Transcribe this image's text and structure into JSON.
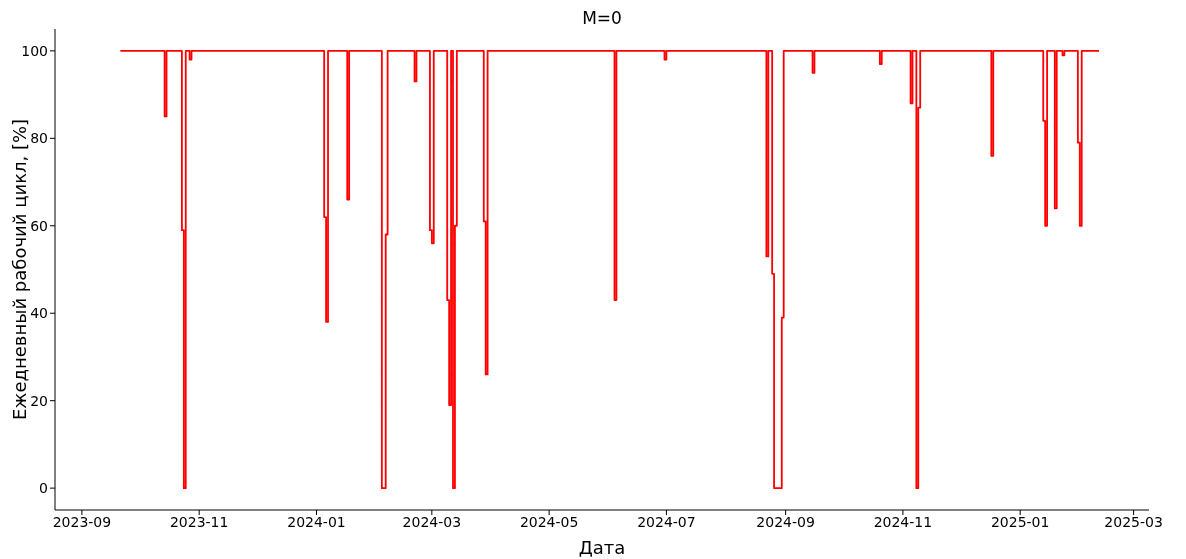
{
  "chart_data": {
    "type": "step",
    "title": "M=0",
    "xlabel": "Дата",
    "ylabel": "Ежедневный рабочий цикл, [%]",
    "color": "#ff0000",
    "x": [
      "2023-09-21",
      "2023-10-14",
      "2023-10-15",
      "2023-10-23",
      "2023-10-24",
      "2023-10-25",
      "2023-10-27",
      "2023-10-28",
      "2024-01-05",
      "2024-01-06",
      "2024-01-07",
      "2024-01-17",
      "2024-01-18",
      "2024-02-04",
      "2024-02-06",
      "2024-02-07",
      "2024-02-21",
      "2024-02-22",
      "2024-02-29",
      "2024-03-01",
      "2024-03-02",
      "2024-03-09",
      "2024-03-10",
      "2024-03-11",
      "2024-03-12",
      "2024-03-13",
      "2024-03-14",
      "2024-03-28",
      "2024-03-29",
      "2024-03-30",
      "2024-06-04",
      "2024-06-05",
      "2024-06-30",
      "2024-07-01",
      "2024-08-22",
      "2024-08-23",
      "2024-08-25",
      "2024-08-26",
      "2024-08-30",
      "2024-08-31",
      "2024-09-15",
      "2024-09-16",
      "2024-10-20",
      "2024-10-21",
      "2024-11-05",
      "2024-11-06",
      "2024-11-08",
      "2024-11-09",
      "2024-11-10",
      "2024-12-17",
      "2024-12-18",
      "2025-01-13",
      "2025-01-14",
      "2025-01-15",
      "2025-01-19",
      "2025-01-20",
      "2025-01-23",
      "2025-01-24",
      "2025-01-31",
      "2025-02-01",
      "2025-02-02",
      "2025-02-11"
    ],
    "values": [
      100,
      85,
      100,
      59,
      0,
      100,
      98,
      100,
      62,
      38,
      100,
      66,
      100,
      0,
      58,
      100,
      93,
      100,
      59,
      56,
      100,
      43,
      19,
      100,
      0,
      60,
      100,
      61,
      26,
      100,
      43,
      100,
      98,
      100,
      53,
      100,
      49,
      0,
      39,
      100,
      95,
      100,
      97,
      100,
      88,
      100,
      0,
      87,
      100,
      76,
      100,
      84,
      60,
      100,
      64,
      100,
      99,
      100,
      79,
      60,
      100,
      100
    ],
    "xlim": [
      "2023-08-18",
      "2025-03-09"
    ],
    "xticks": [
      "2023-09",
      "2023-11",
      "2024-01",
      "2024-03",
      "2024-05",
      "2024-07",
      "2024-09",
      "2024-11",
      "2025-01",
      "2025-03"
    ],
    "ylim": [
      -5,
      105
    ],
    "yticks": [
      0,
      20,
      40,
      60,
      80,
      100
    ]
  }
}
